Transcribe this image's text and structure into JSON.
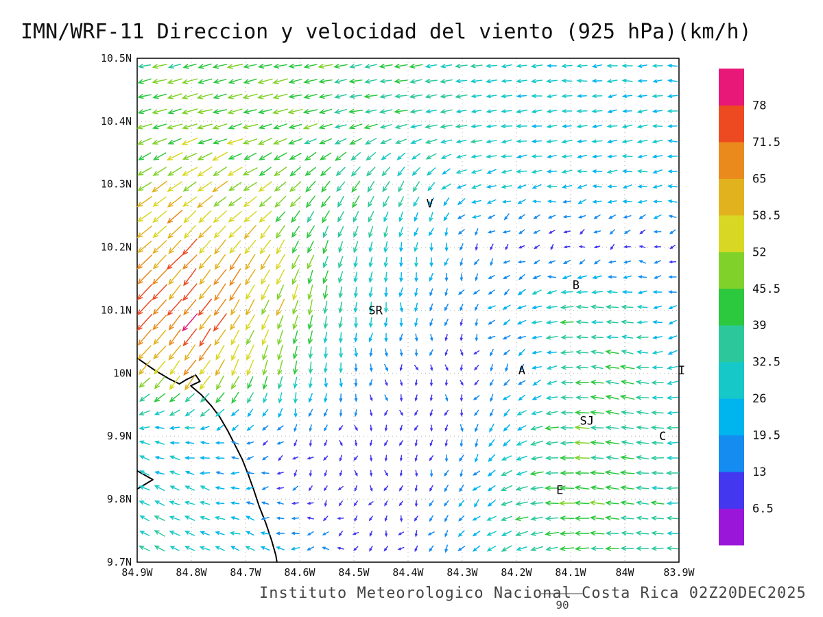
{
  "title": "IMN/WRF-11 Direccion y velocidad del viento (925 hPa)(km/h)",
  "footer": {
    "text": "Instituto Meteorologico Nacional Costa Rica 02Z20DEC2025",
    "note": "90"
  },
  "axes": {
    "lat_tick_labels": [
      "10.5N",
      "10.4N",
      "10.3N",
      "10.2N",
      "10.1N",
      "10N",
      "9.9N",
      "9.8N",
      "9.7N"
    ],
    "lon_tick_labels": [
      "84.9W",
      "84.8W",
      "84.7W",
      "84.6W",
      "84.5W",
      "84.4W",
      "84.3W",
      "84.2W",
      "84.1W",
      "84W",
      "83.9W"
    ],
    "lat_range_n": [
      9.7,
      10.5
    ],
    "lon_range_w": [
      84.9,
      83.9
    ],
    "grid": "dotted"
  },
  "colorbar": {
    "position": "right",
    "units": "km/h",
    "levels_kmh": [
      6.5,
      13,
      19.5,
      26,
      32.5,
      39,
      45.5,
      52,
      58.5,
      65,
      71.5,
      78
    ],
    "tick_labels_top_to_bottom": [
      "78",
      "71.5",
      "65",
      "58.5",
      "52",
      "45.5",
      "39",
      "32.5",
      "26",
      "19.5",
      "13",
      "6.5"
    ],
    "colors_bottom_to_top": [
      "#9a16d8",
      "#4338f0",
      "#148cf0",
      "#00b4ee",
      "#16c8c8",
      "#2cc89c",
      "#2cc83e",
      "#80d22a",
      "#d8d824",
      "#e2b21e",
      "#ea8a1c",
      "#ee4a22",
      "#e81878"
    ]
  },
  "stations": [
    {
      "label": "V",
      "lon": -84.36,
      "lat": 10.27
    },
    {
      "label": "B",
      "lon": -84.09,
      "lat": 10.14
    },
    {
      "label": "SR",
      "lon": -84.46,
      "lat": 10.1
    },
    {
      "label": "A",
      "lon": -84.19,
      "lat": 10.005
    },
    {
      "label": "SJ",
      "lon": -84.07,
      "lat": 9.925
    },
    {
      "label": "C",
      "lon": -83.93,
      "lat": 9.9
    },
    {
      "label": "E",
      "lon": -84.12,
      "lat": 9.815
    },
    {
      "label": "I",
      "lon": -83.895,
      "lat": 10.005
    }
  ],
  "coastline": {
    "segments": [
      [
        [
          -84.9,
          10.024
        ],
        [
          -84.868,
          10.005
        ],
        [
          -84.841,
          9.991
        ],
        [
          -84.822,
          9.983
        ],
        [
          -84.809,
          9.99
        ],
        [
          -84.792,
          9.997
        ],
        [
          -84.784,
          9.987
        ],
        [
          -84.801,
          9.98
        ],
        [
          -84.782,
          9.966
        ],
        [
          -84.763,
          9.948
        ],
        [
          -84.748,
          9.931
        ],
        [
          -84.733,
          9.909
        ],
        [
          -84.72,
          9.887
        ],
        [
          -84.706,
          9.863
        ],
        [
          -84.695,
          9.839
        ],
        [
          -84.685,
          9.815
        ],
        [
          -84.675,
          9.789
        ],
        [
          -84.663,
          9.763
        ],
        [
          -84.652,
          9.735
        ],
        [
          -84.644,
          9.711
        ],
        [
          -84.642,
          9.7
        ]
      ],
      [
        [
          -84.9,
          9.845
        ],
        [
          -84.871,
          9.831
        ],
        [
          -84.9,
          9.816
        ]
      ]
    ]
  },
  "chart_data": {
    "type": "quiver",
    "title": "IMN/WRF-11 Direccion y velocidad del viento (925 hPa)(km/h)",
    "variable": "wind direction and speed",
    "level": "925 hPa",
    "units": "km/h",
    "valid_time": "02Z20DEC2025",
    "lon_range_deg": [
      -84.9,
      -83.9
    ],
    "lat_range_deg": [
      9.7,
      10.5
    ],
    "speed_scale_levels_kmh": [
      6.5,
      13,
      19.5,
      26,
      32.5,
      39,
      45.5,
      52,
      58.5,
      65,
      71.5,
      78
    ],
    "field": {
      "comment": "coarse 0.1-deg grid sampled from plot; dir_deg_math: direction arrow points toward (0=E, 90=N)",
      "lons": [
        -84.9,
        -84.8,
        -84.7,
        -84.6,
        -84.5,
        -84.4,
        -84.3,
        -84.2,
        -84.1,
        -84.0,
        -83.9
      ],
      "lats": [
        10.5,
        10.4,
        10.3,
        10.2,
        10.1,
        10.0,
        9.9,
        9.8,
        9.7
      ],
      "dir_deg_math": [
        [
          193,
          193,
          192,
          191,
          190,
          189,
          188,
          187,
          186,
          185,
          185
        ],
        [
          197,
          196,
          195,
          194,
          192,
          190,
          188,
          186,
          185,
          185,
          184
        ],
        [
          215,
          213,
          212,
          225,
          235,
          242,
          205,
          192,
          188,
          186,
          185
        ],
        [
          222,
          228,
          232,
          245,
          255,
          262,
          250,
          230,
          205,
          195,
          190
        ],
        [
          225,
          232,
          240,
          255,
          265,
          268,
          240,
          200,
          180,
          176,
          195
        ],
        [
          228,
          235,
          248,
          265,
          272,
          275,
          265,
          230,
          182,
          166,
          200
        ],
        [
          165,
          175,
          195,
          240,
          268,
          275,
          260,
          210,
          180,
          170,
          185
        ],
        [
          155,
          160,
          175,
          205,
          255,
          270,
          245,
          195,
          175,
          172,
          180
        ],
        [
          150,
          155,
          162,
          172,
          195,
          225,
          235,
          205,
          185,
          178,
          178
        ]
      ],
      "speed_kmh": [
        [
          42,
          44,
          45,
          43,
          40,
          36,
          32,
          29,
          27,
          26,
          25
        ],
        [
          46,
          48,
          46,
          43,
          40,
          36,
          32,
          29,
          26,
          25,
          25
        ],
        [
          55,
          57,
          52,
          46,
          40,
          34,
          27,
          26,
          25,
          25,
          24
        ],
        [
          63,
          68,
          58,
          46,
          34,
          26,
          16,
          11,
          10,
          11,
          12
        ],
        [
          70,
          76,
          64,
          50,
          30,
          22,
          14,
          24,
          40,
          32,
          18
        ],
        [
          55,
          60,
          52,
          38,
          18,
          11,
          10,
          18,
          34,
          42,
          26
        ],
        [
          26,
          22,
          16,
          12,
          10,
          10,
          16,
          30,
          44,
          40,
          32
        ],
        [
          32,
          27,
          20,
          12,
          10,
          11,
          18,
          38,
          46,
          40,
          33
        ],
        [
          33,
          30,
          27,
          21,
          13,
          11,
          18,
          32,
          40,
          34,
          30
        ]
      ]
    }
  }
}
